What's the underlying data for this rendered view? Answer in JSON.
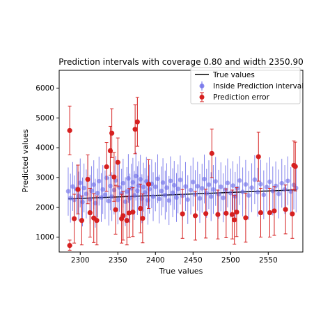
{
  "chart_data": {
    "type": "scatter",
    "title": "Prediction intervals with coverage 0.80 and width 2350.90",
    "xlabel": "True values",
    "ylabel": "Predicted values",
    "xlim": [
      2272,
      2596
    ],
    "ylim": [
      500,
      6600
    ],
    "x_ticks": [
      2300,
      2350,
      2400,
      2450,
      2500,
      2550
    ],
    "y_ticks": [
      1000,
      2000,
      3000,
      4000,
      5000,
      6000
    ],
    "grid": false,
    "legend_position": "top-right",
    "legend": [
      "True values",
      "Inside Prediction interval",
      "Prediction error"
    ],
    "true_line": {
      "name": "True values",
      "color": "#000000",
      "x": [
        2284,
        2588
      ],
      "y": [
        2284,
        2588
      ]
    },
    "series": [
      {
        "name": "Inside Prediction interval",
        "color": "#4a4adf",
        "points": [
          [
            2284,
            2540,
            1720,
            3340
          ],
          [
            2287,
            2310,
            1490,
            3130
          ],
          [
            2290,
            2700,
            1880,
            3520
          ],
          [
            2292,
            2250,
            1430,
            3070
          ],
          [
            2295,
            2610,
            1790,
            3430
          ],
          [
            2298,
            2380,
            1560,
            3200
          ],
          [
            2300,
            2820,
            2000,
            3640
          ],
          [
            2303,
            2180,
            1360,
            3000
          ],
          [
            2305,
            2650,
            1830,
            3470
          ],
          [
            2308,
            2450,
            1630,
            3270
          ],
          [
            2310,
            2950,
            2130,
            3770
          ],
          [
            2313,
            2270,
            1450,
            3090
          ],
          [
            2315,
            2560,
            1740,
            3380
          ],
          [
            2318,
            2760,
            1940,
            3580
          ],
          [
            2320,
            2140,
            1320,
            2960
          ],
          [
            2323,
            2480,
            1660,
            3300
          ],
          [
            2325,
            2880,
            2060,
            3700
          ],
          [
            2328,
            2330,
            1510,
            3150
          ],
          [
            2330,
            2600,
            1780,
            3420
          ],
          [
            2333,
            2420,
            1600,
            3240
          ],
          [
            2335,
            2990,
            2170,
            3810
          ],
          [
            2338,
            2210,
            1390,
            3030
          ],
          [
            2340,
            2720,
            1900,
            3540
          ],
          [
            2342,
            2360,
            1540,
            3180
          ],
          [
            2345,
            2580,
            1760,
            3400
          ],
          [
            2347,
            2900,
            2080,
            3720
          ],
          [
            2350,
            2250,
            1430,
            3070
          ],
          [
            2352,
            2670,
            1850,
            3490
          ],
          [
            2355,
            2470,
            1650,
            3290
          ],
          [
            2357,
            2810,
            1990,
            3630
          ],
          [
            2360,
            2190,
            1370,
            3010
          ],
          [
            2362,
            2530,
            1710,
            3350
          ],
          [
            2364,
            2970,
            2150,
            3790
          ],
          [
            2366,
            2310,
            1490,
            3130
          ],
          [
            2368,
            2640,
            1820,
            3460
          ],
          [
            2370,
            2840,
            2020,
            3660
          ],
          [
            2372,
            2400,
            1580,
            3220
          ],
          [
            2374,
            3050,
            2230,
            3870
          ],
          [
            2376,
            2560,
            1740,
            3380
          ],
          [
            2378,
            2730,
            1910,
            3550
          ],
          [
            2380,
            2940,
            2120,
            3760
          ],
          [
            2382,
            2290,
            1470,
            3110
          ],
          [
            2384,
            2680,
            1860,
            3500
          ],
          [
            2386,
            2500,
            1680,
            3320
          ],
          [
            2388,
            2870,
            2050,
            3690
          ],
          [
            2390,
            2240,
            1420,
            3060
          ],
          [
            2392,
            2610,
            1790,
            3430
          ],
          [
            2395,
            2790,
            1970,
            3610
          ],
          [
            2397,
            2360,
            1540,
            3180
          ],
          [
            2400,
            2690,
            1870,
            3510
          ],
          [
            2403,
            2960,
            2140,
            3780
          ],
          [
            2405,
            2280,
            1460,
            3100
          ],
          [
            2408,
            2550,
            1730,
            3370
          ],
          [
            2410,
            2830,
            2010,
            3650
          ],
          [
            2413,
            2410,
            1590,
            3230
          ],
          [
            2415,
            2660,
            1840,
            3480
          ],
          [
            2418,
            2230,
            1410,
            3050
          ],
          [
            2420,
            2890,
            2070,
            3710
          ],
          [
            2423,
            2490,
            1670,
            3310
          ],
          [
            2425,
            2740,
            1920,
            3560
          ],
          [
            2428,
            2330,
            1510,
            3150
          ],
          [
            2430,
            2620,
            1800,
            3440
          ],
          [
            2433,
            2920,
            2100,
            3740
          ],
          [
            2436,
            2390,
            1570,
            3210
          ],
          [
            2440,
            2700,
            1880,
            3520
          ],
          [
            2443,
            2260,
            1440,
            3080
          ],
          [
            2447,
            2580,
            1760,
            3400
          ],
          [
            2450,
            2850,
            2030,
            3670
          ],
          [
            2453,
            2430,
            1610,
            3250
          ],
          [
            2456,
            2710,
            1890,
            3530
          ],
          [
            2459,
            2300,
            1480,
            3120
          ],
          [
            2462,
            2640,
            1820,
            3460
          ],
          [
            2465,
            2950,
            2130,
            3770
          ],
          [
            2468,
            2470,
            1650,
            3290
          ],
          [
            2471,
            2760,
            1940,
            3580
          ],
          [
            2474,
            2360,
            1540,
            3180
          ],
          [
            2477,
            2600,
            1780,
            3420
          ],
          [
            2480,
            2870,
            2050,
            3690
          ],
          [
            2484,
            2440,
            1620,
            3260
          ],
          [
            2487,
            2690,
            1870,
            3510
          ],
          [
            2490,
            2320,
            1500,
            3140
          ],
          [
            2493,
            2590,
            1770,
            3410
          ],
          [
            2496,
            2820,
            2000,
            3640
          ],
          [
            2500,
            2480,
            1660,
            3300
          ],
          [
            2503,
            2730,
            1910,
            3550
          ],
          [
            2506,
            2370,
            1550,
            3190
          ],
          [
            2509,
            2640,
            1820,
            3460
          ],
          [
            2512,
            2900,
            2080,
            3720
          ],
          [
            2516,
            2520,
            1700,
            3340
          ],
          [
            2520,
            2770,
            1950,
            3590
          ],
          [
            2524,
            2400,
            1580,
            3220
          ],
          [
            2528,
            2660,
            1840,
            3480
          ],
          [
            2532,
            2930,
            2110,
            3750
          ],
          [
            2536,
            2510,
            1690,
            3330
          ],
          [
            2540,
            2780,
            1960,
            3600
          ],
          [
            2544,
            2420,
            1600,
            3240
          ],
          [
            2548,
            2680,
            1860,
            3500
          ],
          [
            2552,
            2860,
            2040,
            3680
          ],
          [
            2556,
            2550,
            1730,
            3370
          ],
          [
            2560,
            2720,
            1900,
            3540
          ],
          [
            2564,
            2450,
            1630,
            3270
          ],
          [
            2568,
            2810,
            1990,
            3630
          ],
          [
            2572,
            2600,
            1780,
            3420
          ],
          [
            2576,
            2890,
            2070,
            3710
          ],
          [
            2580,
            2530,
            1710,
            3350
          ],
          [
            2584,
            2750,
            1930,
            3570
          ],
          [
            2587,
            2650,
            1830,
            3470
          ]
        ]
      },
      {
        "name": "Prediction error",
        "color": "#d62020",
        "points": [
          [
            2286,
            4580,
            3760,
            5400
          ],
          [
            2286,
            720,
            560,
            900
          ],
          [
            2292,
            1620,
            800,
            2440
          ],
          [
            2297,
            2600,
            1780,
            3420
          ],
          [
            2302,
            1560,
            740,
            2380
          ],
          [
            2310,
            2940,
            2120,
            3760
          ],
          [
            2313,
            1820,
            1000,
            2640
          ],
          [
            2318,
            1640,
            820,
            2460
          ],
          [
            2322,
            1560,
            740,
            2380
          ],
          [
            2335,
            3360,
            2540,
            4180
          ],
          [
            2340,
            3900,
            3080,
            4720
          ],
          [
            2342,
            4490,
            3670,
            5310
          ],
          [
            2345,
            3020,
            2200,
            3840
          ],
          [
            2347,
            1920,
            1100,
            2740
          ],
          [
            2350,
            3510,
            2690,
            4330
          ],
          [
            2355,
            1620,
            800,
            2440
          ],
          [
            2357,
            1720,
            900,
            2540
          ],
          [
            2362,
            1560,
            740,
            2380
          ],
          [
            2365,
            1810,
            990,
            2630
          ],
          [
            2370,
            1840,
            1020,
            2660
          ],
          [
            2373,
            4620,
            3800,
            5440
          ],
          [
            2376,
            4870,
            4050,
            5690
          ],
          [
            2380,
            1960,
            1140,
            2780
          ],
          [
            2383,
            1630,
            810,
            2450
          ],
          [
            2391,
            2780,
            1960,
            3600
          ],
          [
            2436,
            1780,
            960,
            2600
          ],
          [
            2453,
            1720,
            900,
            2540
          ],
          [
            2467,
            1790,
            970,
            2610
          ],
          [
            2475,
            3810,
            2990,
            4630
          ],
          [
            2483,
            1760,
            940,
            2580
          ],
          [
            2494,
            1800,
            980,
            2620
          ],
          [
            2502,
            1760,
            940,
            2580
          ],
          [
            2505,
            1580,
            760,
            2400
          ],
          [
            2508,
            1840,
            1020,
            2660
          ],
          [
            2520,
            1650,
            830,
            2470
          ],
          [
            2537,
            3700,
            2880,
            4520
          ],
          [
            2540,
            1820,
            1000,
            2640
          ],
          [
            2552,
            1820,
            1000,
            2640
          ],
          [
            2558,
            1880,
            1060,
            2700
          ],
          [
            2573,
            1930,
            1110,
            2750
          ],
          [
            2582,
            1780,
            960,
            2600
          ],
          [
            2584,
            3410,
            2590,
            4230
          ],
          [
            2586,
            3370,
            2550,
            4190
          ]
        ]
      }
    ]
  }
}
